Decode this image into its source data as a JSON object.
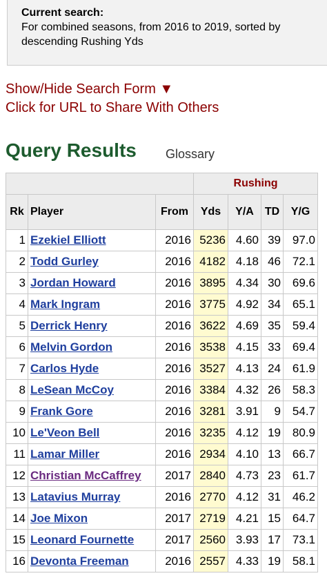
{
  "search_box": {
    "heading": "Current search:",
    "lines": [
      "For combined seasons, from 2016 to 2019, sorted by",
      "descending Rushing Yds"
    ]
  },
  "links": {
    "show_hide": "Show/Hide Search Form ▼",
    "share_url": "Click for URL to Share With Others"
  },
  "results": {
    "title": "Query Results",
    "glossary": "Glossary"
  },
  "table": {
    "group_header": "Rushing",
    "columns": [
      "Rk",
      "Player",
      "From",
      "Yds",
      "Y/A",
      "TD",
      "Y/G"
    ],
    "rows": [
      {
        "rk": 1,
        "player": "Ezekiel Elliott",
        "from": 2016,
        "yds": 5236,
        "ya": "4.60",
        "td": 39,
        "yg": "97.0"
      },
      {
        "rk": 2,
        "player": "Todd Gurley",
        "from": 2016,
        "yds": 4182,
        "ya": "4.18",
        "td": 46,
        "yg": "72.1"
      },
      {
        "rk": 3,
        "player": "Jordan Howard",
        "from": 2016,
        "yds": 3895,
        "ya": "4.34",
        "td": 30,
        "yg": "69.6"
      },
      {
        "rk": 4,
        "player": "Mark Ingram",
        "from": 2016,
        "yds": 3775,
        "ya": "4.92",
        "td": 34,
        "yg": "65.1"
      },
      {
        "rk": 5,
        "player": "Derrick Henry",
        "from": 2016,
        "yds": 3622,
        "ya": "4.69",
        "td": 35,
        "yg": "59.4"
      },
      {
        "rk": 6,
        "player": "Melvin Gordon",
        "from": 2016,
        "yds": 3538,
        "ya": "4.15",
        "td": 33,
        "yg": "69.4"
      },
      {
        "rk": 7,
        "player": "Carlos Hyde",
        "from": 2016,
        "yds": 3527,
        "ya": "4.13",
        "td": 24,
        "yg": "61.9"
      },
      {
        "rk": 8,
        "player": "LeSean McCoy",
        "from": 2016,
        "yds": 3384,
        "ya": "4.32",
        "td": 26,
        "yg": "58.3"
      },
      {
        "rk": 9,
        "player": "Frank Gore",
        "from": 2016,
        "yds": 3281,
        "ya": "3.91",
        "td": 9,
        "yg": "54.7"
      },
      {
        "rk": 10,
        "player": "Le'Veon Bell",
        "from": 2016,
        "yds": 3235,
        "ya": "4.12",
        "td": 19,
        "yg": "80.9"
      },
      {
        "rk": 11,
        "player": "Lamar Miller",
        "from": 2016,
        "yds": 2934,
        "ya": "4.10",
        "td": 13,
        "yg": "66.7"
      },
      {
        "rk": 12,
        "player": "Christian McCaffrey",
        "from": 2017,
        "yds": 2840,
        "ya": "4.73",
        "td": 23,
        "yg": "61.7",
        "visited": true
      },
      {
        "rk": 13,
        "player": "Latavius Murray",
        "from": 2016,
        "yds": 2770,
        "ya": "4.12",
        "td": 31,
        "yg": "46.2"
      },
      {
        "rk": 14,
        "player": "Joe Mixon",
        "from": 2017,
        "yds": 2719,
        "ya": "4.21",
        "td": 15,
        "yg": "64.7"
      },
      {
        "rk": 15,
        "player": "Leonard Fournette",
        "from": 2017,
        "yds": 2560,
        "ya": "3.93",
        "td": 17,
        "yg": "73.1"
      },
      {
        "rk": 16,
        "player": "Devonta Freeman",
        "from": 2016,
        "yds": 2557,
        "ya": "4.33",
        "td": 19,
        "yg": "58.1"
      }
    ]
  }
}
